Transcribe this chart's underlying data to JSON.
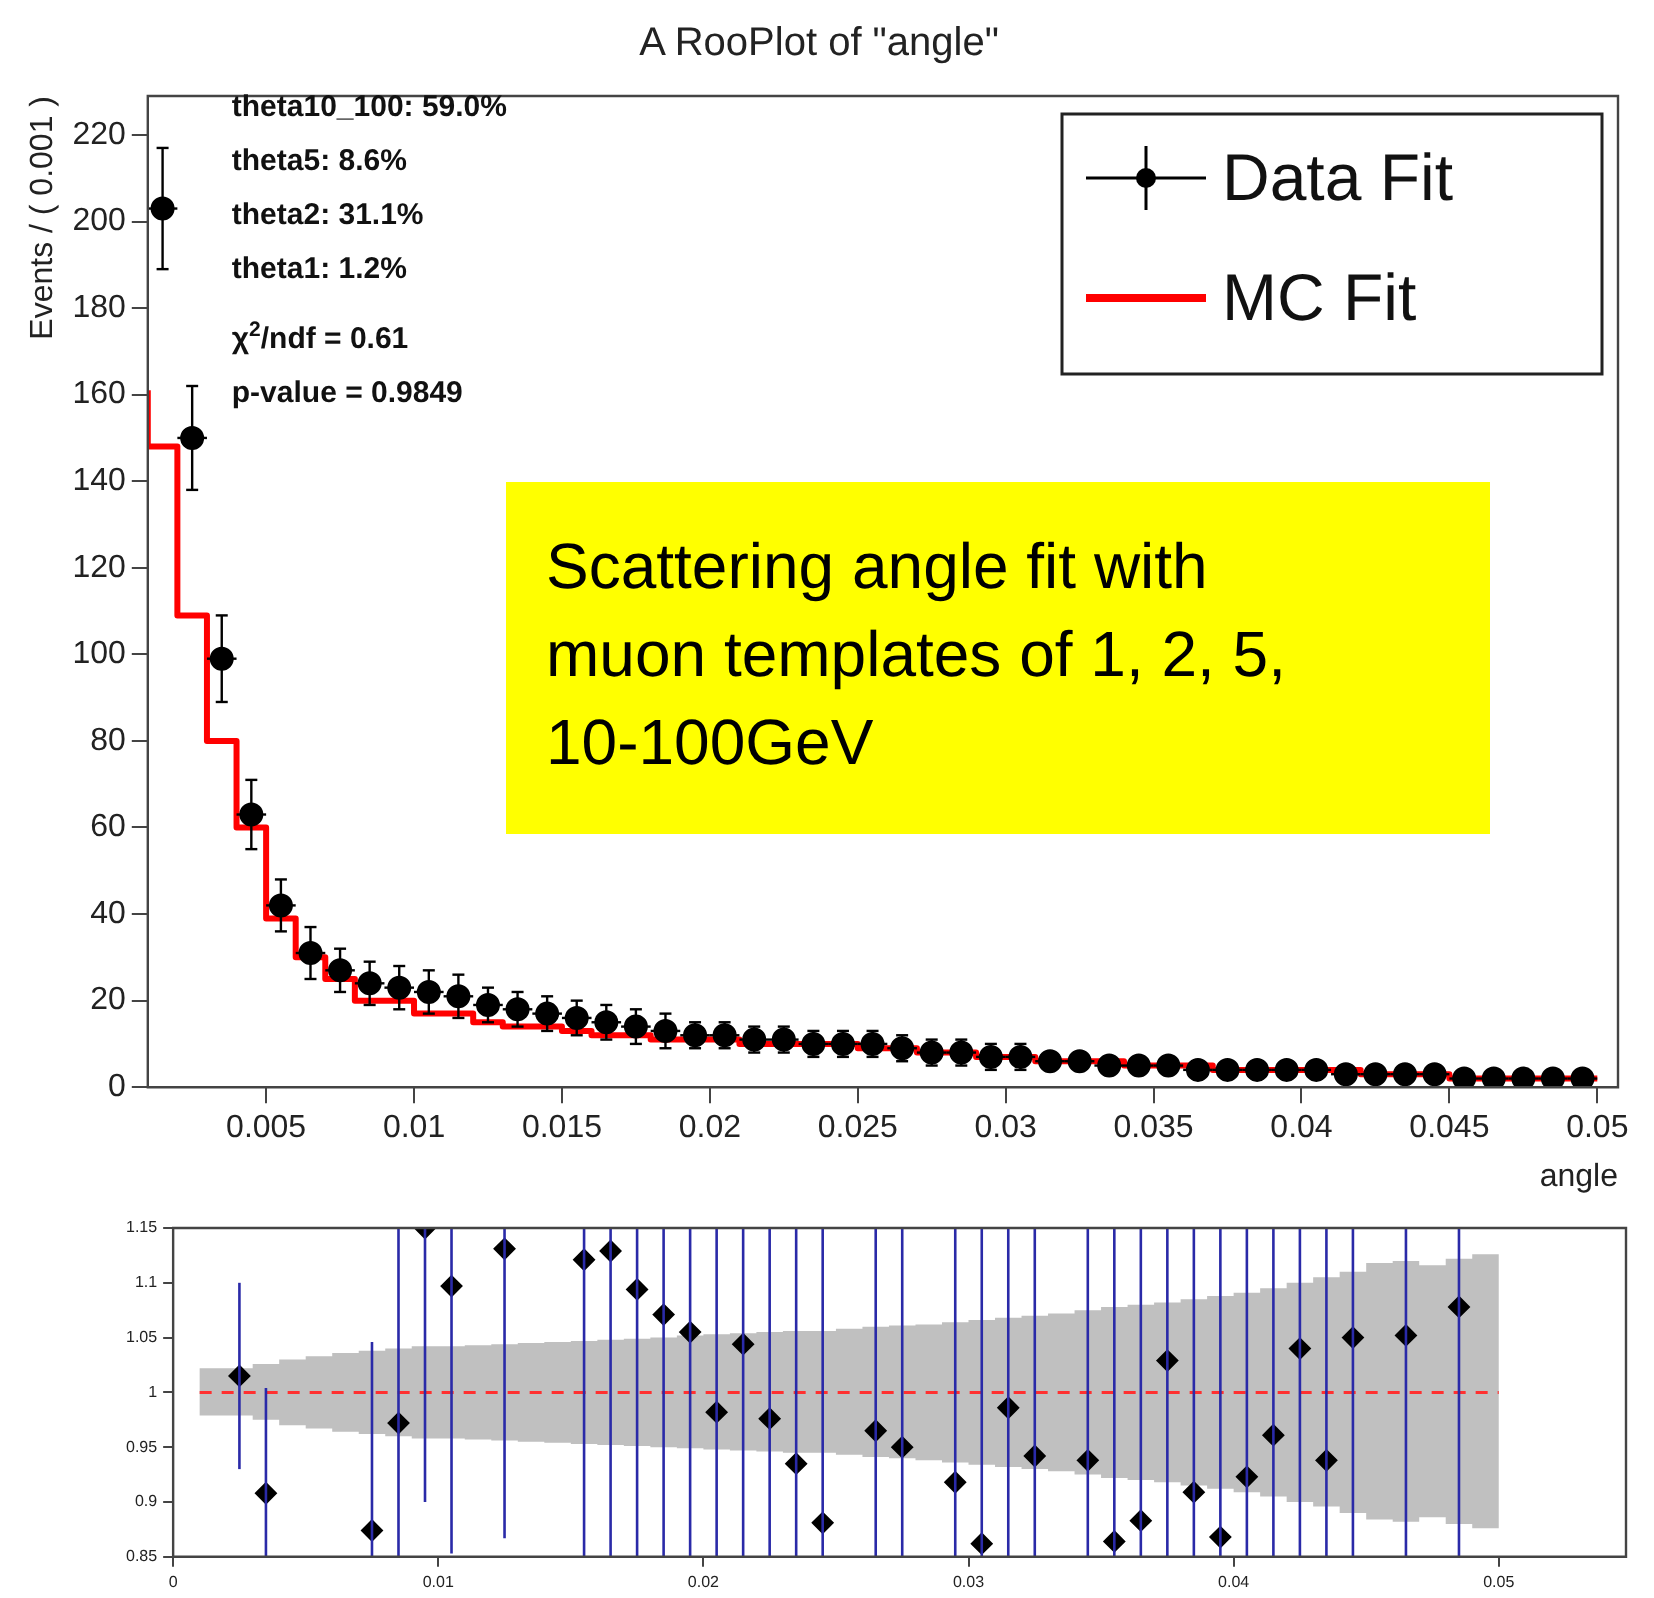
{
  "chart_data": [
    {
      "type": "scatter",
      "title": "A RooPlot of \"angle\"",
      "xlabel": "angle",
      "ylabel": "Events / ( 0.001 )",
      "xlim": [
        0.001,
        0.0507
      ],
      "xticks": [
        0.005,
        0.01,
        0.015,
        0.02,
        0.025,
        0.03,
        0.035,
        0.04,
        0.045,
        0.05
      ],
      "ylim": [
        0,
        229
      ],
      "yticks": [
        0,
        20,
        40,
        60,
        80,
        100,
        120,
        140,
        160,
        180,
        200,
        220
      ],
      "grid": false,
      "legend": "top right",
      "annotations": [
        "theta10_100: 59.0%",
        "theta5: 8.6%",
        "theta2: 31.1%",
        "theta1: 1.2%",
        "χ$^{2}$/ndf = 0.61",
        "p-value = 0.9849",
        "Scattering angle fit with muon templates of 1, 2, 5, 10-100GeV"
      ],
      "series": [
        {
          "name": "Data Fit",
          "color": "#000000",
          "marker": "circle",
          "x": [
            0.0015,
            0.0025,
            0.0035,
            0.0045,
            0.0055,
            0.0065,
            0.0075,
            0.0085,
            0.0095,
            0.0105,
            0.0115,
            0.0125,
            0.0135,
            0.0145,
            0.0155,
            0.0165,
            0.0175,
            0.0185,
            0.0195,
            0.0205,
            0.0215,
            0.0225,
            0.0235,
            0.0245,
            0.0255,
            0.0265,
            0.0275,
            0.0285,
            0.0295,
            0.0305,
            0.0315,
            0.0325,
            0.0335,
            0.0345,
            0.0355,
            0.0365,
            0.0375,
            0.0385,
            0.0395,
            0.0405,
            0.0415,
            0.0425,
            0.0435,
            0.0445,
            0.0455,
            0.0465,
            0.0475,
            0.0485,
            0.0495
          ],
          "values": [
            203,
            150,
            99,
            63,
            42,
            31,
            27,
            24,
            23,
            22,
            21,
            19,
            18,
            17,
            16,
            15,
            14,
            13,
            12,
            12,
            11,
            11,
            10,
            10,
            10,
            9,
            8,
            8,
            7,
            7,
            6,
            6,
            5,
            5,
            5,
            4,
            4,
            4,
            4,
            4,
            3,
            3,
            3,
            3,
            2,
            2,
            2,
            2,
            2
          ],
          "errors": [
            14,
            12,
            10,
            8,
            6,
            6,
            5,
            5,
            5,
            5,
            5,
            4,
            4,
            4,
            4,
            4,
            4,
            4,
            3,
            3,
            3,
            3,
            3,
            3,
            3,
            3,
            3,
            3,
            3,
            3,
            2,
            2,
            2,
            2,
            2,
            2,
            2,
            2,
            2,
            2,
            2,
            2,
            2,
            2,
            1,
            1,
            1,
            1,
            1
          ],
          "xerrors": [
            0.0005,
            0.0005,
            0.0005,
            0.0005,
            0.0005,
            0.0005,
            0.0005,
            0.0005,
            0.0005,
            0.0005,
            0.0005,
            0.0005,
            0.0005,
            0.0005,
            0.0005,
            0.0005,
            0.0005,
            0.0005,
            0.0005,
            0.0005,
            0.0005,
            0.0005,
            0.0005,
            0.0005,
            0.0005,
            0.0005,
            0.0005,
            0.0005,
            0.0005,
            0.0005,
            0.0005,
            0.0005,
            0.0005,
            0.0005,
            0.0005,
            0.0005,
            0.0005,
            0.0005,
            0.0005,
            0.0005,
            0.0005,
            0.0005,
            0.0005,
            0.0005,
            0.0005,
            0.0005,
            0.0005,
            0.0005,
            0.0005
          ]
        },
        {
          "name": "MC Fit",
          "type": "step",
          "color": "#ff0000",
          "marker": "none",
          "x": [
            0.001,
            0.002,
            0.003,
            0.004,
            0.005,
            0.006,
            0.007,
            0.008,
            0.009,
            0.01,
            0.011,
            0.012,
            0.013,
            0.014,
            0.015,
            0.016,
            0.017,
            0.018,
            0.019,
            0.02,
            0.021,
            0.022,
            0.023,
            0.024,
            0.025,
            0.026,
            0.027,
            0.028,
            0.029,
            0.03,
            0.031,
            0.032,
            0.033,
            0.034,
            0.035,
            0.036,
            0.037,
            0.038,
            0.039,
            0.04,
            0.041,
            0.042,
            0.043,
            0.044,
            0.045,
            0.046,
            0.047,
            0.048,
            0.049,
            0.05
          ],
          "values": [
            161,
            148,
            109,
            80,
            60,
            39,
            30,
            25,
            20,
            20,
            17,
            17,
            15,
            14,
            14,
            13,
            12,
            12,
            11,
            11,
            11,
            10,
            10,
            10,
            10,
            9,
            9,
            8,
            8,
            7,
            7,
            6,
            6,
            6,
            5,
            5,
            5,
            4,
            4,
            4,
            4,
            4,
            3,
            3,
            3,
            2,
            2,
            2,
            2,
            2
          ]
        }
      ]
    },
    {
      "type": "scatter",
      "xlim": [
        0,
        0.0548
      ],
      "xticks": [
        0,
        0.01,
        0.02,
        0.03,
        0.04,
        0.05
      ],
      "ylim": [
        0.85,
        1.15
      ],
      "yticks": [
        0.85,
        0.9,
        0.95,
        1,
        1.05,
        1.1,
        1.15
      ],
      "grid": false,
      "series": [
        {
          "type": "step",
          "color": "#ff3030",
          "line_style": "dashed",
          "marker": "none",
          "x": [
            0.001,
            0.002,
            0.003,
            0.004,
            0.005,
            0.006,
            0.007,
            0.008,
            0.009,
            0.01,
            0.011,
            0.012,
            0.013,
            0.014,
            0.015,
            0.016,
            0.017,
            0.018,
            0.019,
            0.02,
            0.021,
            0.022,
            0.023,
            0.024,
            0.025,
            0.026,
            0.027,
            0.028,
            0.029,
            0.03,
            0.031,
            0.032,
            0.033,
            0.034,
            0.035,
            0.036,
            0.037,
            0.038,
            0.039,
            0.04,
            0.041,
            0.042,
            0.043,
            0.044,
            0.045,
            0.046,
            0.047,
            0.048,
            0.049,
            0.05
          ],
          "values": [
            1,
            1,
            1,
            1,
            1,
            1,
            1,
            1,
            1,
            1,
            1,
            1,
            1,
            1,
            1,
            1,
            1,
            1,
            1,
            1,
            1,
            1,
            1,
            1,
            1,
            1,
            1,
            1,
            1,
            1,
            1,
            1,
            1,
            1,
            1,
            1,
            1,
            1,
            1,
            1,
            1,
            1,
            1,
            1,
            1,
            1,
            1,
            1,
            1,
            1
          ],
          "upper": [
            1.022,
            1.022,
            1.026,
            1.03,
            1.033,
            1.036,
            1.038,
            1.04,
            1.042,
            1.042,
            1.043,
            1.044,
            1.045,
            1.046,
            1.047,
            1.048,
            1.049,
            1.05,
            1.052,
            1.053,
            1.054,
            1.055,
            1.056,
            1.056,
            1.058,
            1.06,
            1.061,
            1.062,
            1.064,
            1.066,
            1.068,
            1.07,
            1.072,
            1.075,
            1.078,
            1.08,
            1.082,
            1.085,
            1.088,
            1.091,
            1.095,
            1.1,
            1.105,
            1.11,
            1.118,
            1.12,
            1.116,
            1.122,
            1.126,
            1.126
          ],
          "lower": [
            0.979,
            0.979,
            0.975,
            0.97,
            0.967,
            0.964,
            0.962,
            0.96,
            0.958,
            0.958,
            0.957,
            0.956,
            0.955,
            0.954,
            0.953,
            0.952,
            0.951,
            0.95,
            0.949,
            0.948,
            0.947,
            0.946,
            0.945,
            0.945,
            0.943,
            0.941,
            0.94,
            0.938,
            0.936,
            0.934,
            0.932,
            0.93,
            0.928,
            0.925,
            0.922,
            0.92,
            0.918,
            0.915,
            0.912,
            0.909,
            0.905,
            0.9,
            0.896,
            0.89,
            0.884,
            0.882,
            0.886,
            0.88,
            0.876,
            0.876
          ]
        },
        {
          "color": "#000000",
          "marker": "diamond",
          "x": [
            0.0025,
            0.0035,
            0.0075,
            0.0085,
            0.0095,
            0.0105,
            0.0125,
            0.0155,
            0.0165,
            0.0175,
            0.0185,
            0.0195,
            0.0205,
            0.0215,
            0.0225,
            0.0235,
            0.0245,
            0.0265,
            0.0275,
            0.0295,
            0.0305,
            0.0315,
            0.0325,
            0.0345,
            0.0355,
            0.0365,
            0.0375,
            0.0385,
            0.0395,
            0.0405,
            0.0415,
            0.0425,
            0.0435,
            0.0445,
            0.0465,
            0.0485
          ],
          "values": [
            1.015,
            0.908,
            0.874,
            0.972,
            1.15,
            1.097,
            1.131,
            1.121,
            1.129,
            1.094,
            1.071,
            1.055,
            0.982,
            1.044,
            0.976,
            0.935,
            0.881,
            0.965,
            0.95,
            0.918,
            0.862,
            0.986,
            0.942,
            0.938,
            0.864,
            0.883,
            1.029,
            0.909,
            0.868,
            0.923,
            0.961,
            1.04,
            0.938,
            1.05,
            1.052,
            1.078
          ],
          "errors": [
            [
              0.93,
              1.1
            ],
            [
              0.85,
              1.004
            ],
            [
              0.85,
              1.046
            ],
            [
              0.85,
              1.15
            ],
            [
              0.9,
              1.15
            ],
            [
              0.853,
              1.15
            ],
            [
              0.867,
              1.15
            ],
            [
              0.85,
              1.15
            ],
            [
              0.85,
              1.15
            ],
            [
              0.85,
              1.15
            ],
            [
              0.85,
              1.15
            ],
            [
              0.85,
              1.15
            ],
            [
              0.85,
              1.15
            ],
            [
              0.85,
              1.15
            ],
            [
              0.85,
              1.15
            ],
            [
              0.85,
              1.15
            ],
            [
              0.85,
              1.15
            ],
            [
              0.85,
              1.15
            ],
            [
              0.85,
              1.15
            ],
            [
              0.85,
              1.15
            ],
            [
              0.85,
              1.15
            ],
            [
              0.85,
              1.15
            ],
            [
              0.85,
              1.15
            ],
            [
              0.85,
              1.15
            ],
            [
              0.85,
              1.15
            ],
            [
              0.85,
              1.15
            ],
            [
              0.85,
              1.15
            ],
            [
              0.85,
              1.15
            ],
            [
              0.85,
              1.15
            ],
            [
              0.85,
              1.15
            ],
            [
              0.85,
              1.15
            ],
            [
              0.85,
              1.15
            ],
            [
              0.85,
              1.15
            ],
            [
              0.85,
              1.15
            ],
            [
              0.85,
              1.15
            ],
            [
              0.85,
              1.15
            ]
          ]
        }
      ]
    }
  ]
}
